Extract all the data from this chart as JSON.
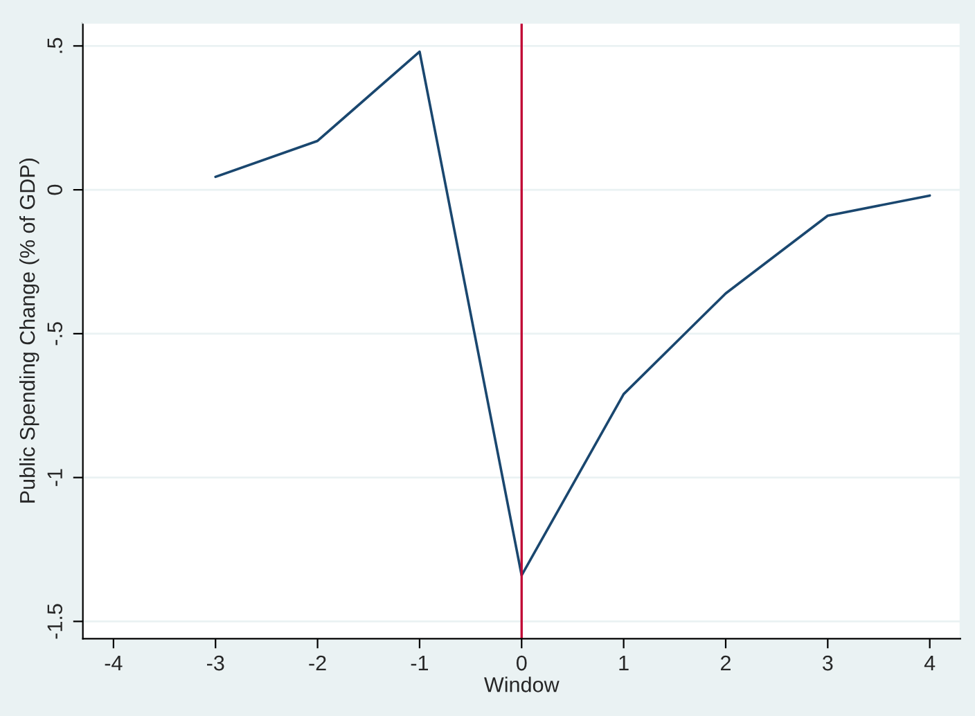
{
  "chart_data": {
    "type": "line",
    "xlabel": "Window",
    "ylabel": "Public Spending Change (% of GDP)",
    "x": [
      -3,
      -2,
      -1,
      0,
      1,
      2,
      3,
      4
    ],
    "series": [
      {
        "color": "#1a476f",
        "values": [
          0.045,
          0.17,
          0.48,
          -1.34,
          -0.71,
          -0.36,
          -0.09,
          -0.02
        ]
      }
    ],
    "xlim": [
      -4.3,
      4.3
    ],
    "ylim": [
      -1.56,
      0.58
    ],
    "xticks": [
      -4,
      -3,
      -2,
      -1,
      0,
      1,
      2,
      3,
      4
    ],
    "yticks": [
      {
        "value": 0.5,
        "label": ".5"
      },
      0,
      {
        "value": -0.5,
        "label": "-.5"
      },
      -1,
      -1.5
    ],
    "grid": "y",
    "marker": "none",
    "line_style": "solid",
    "ref_lines": [
      {
        "axis": "x",
        "value": 0,
        "color": "#c10534"
      }
    ]
  }
}
